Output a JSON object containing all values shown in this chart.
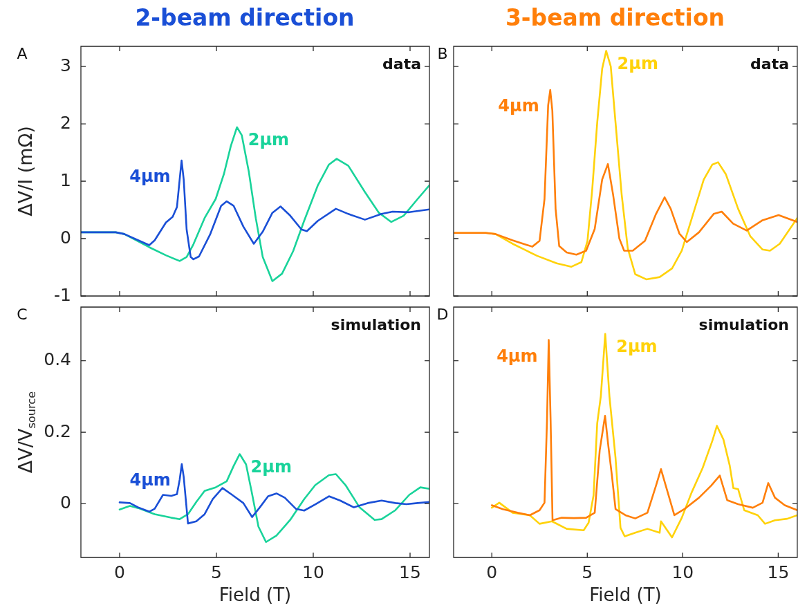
{
  "chart_data": [
    {
      "type": "line",
      "title": "2-beam direction",
      "ylabel": "ΔV/I (mΩ)",
      "annotations": [
        "A",
        "data"
      ],
      "xlim": [
        -2,
        16
      ],
      "xticks": [
        0,
        5,
        10,
        15
      ],
      "ylim": [
        -1,
        3.35
      ],
      "yticks": [
        -1,
        0,
        1,
        2,
        3
      ],
      "tick_labels": "y",
      "series": [
        {
          "name": "4μm",
          "color": "#1a4fd6",
          "x": [
            -2,
            -0.2,
            0.24,
            1.53,
            1.81,
            2.39,
            2.74,
            2.96,
            3.1,
            3.2,
            3.31,
            3.46,
            3.67,
            3.81,
            4.1,
            4.67,
            5.24,
            5.53,
            5.89,
            6.39,
            6.93,
            7.39,
            7.89,
            8.31,
            8.81,
            9.39,
            9.67,
            10.24,
            11.17,
            11.81,
            12.67,
            13.53,
            14.1,
            14.96,
            16
          ],
          "values": [
            0.11,
            0.11,
            0.08,
            -0.115,
            -0.03,
            0.28,
            0.38,
            0.55,
            1.03,
            1.36,
            1.03,
            0.16,
            -0.32,
            -0.36,
            -0.31,
            0.07,
            0.57,
            0.65,
            0.57,
            0.21,
            -0.09,
            0.12,
            0.45,
            0.56,
            0.4,
            0.16,
            0.13,
            0.31,
            0.52,
            0.43,
            0.33,
            0.43,
            0.47,
            0.46,
            0.51
          ]
        },
        {
          "name": "2μm",
          "color": "#19d39a",
          "x": [
            -2,
            -0.2,
            0.24,
            1.53,
            2.39,
            3.1,
            3.46,
            3.81,
            4.39,
            4.96,
            5.39,
            5.74,
            6.06,
            6.31,
            6.67,
            7.03,
            7.39,
            7.89,
            8.39,
            8.96,
            9.53,
            10.24,
            10.81,
            11.21,
            11.81,
            12.67,
            13.39,
            14.03,
            14.67,
            15.39,
            16
          ],
          "values": [
            0.11,
            0.11,
            0.08,
            -0.15,
            -0.29,
            -0.39,
            -0.32,
            -0.1,
            0.36,
            0.69,
            1.13,
            1.61,
            1.94,
            1.8,
            1.17,
            0.36,
            -0.32,
            -0.74,
            -0.61,
            -0.22,
            0.31,
            0.93,
            1.29,
            1.39,
            1.27,
            0.81,
            0.45,
            0.29,
            0.4,
            0.69,
            0.93
          ]
        }
      ]
    },
    {
      "type": "line",
      "title": "3-beam direction",
      "annotations": [
        "B",
        "data"
      ],
      "xlim": [
        -2,
        16
      ],
      "xticks": [
        0,
        5,
        10,
        15
      ],
      "ylim": [
        -1,
        3.35
      ],
      "yticks": [
        -1,
        0,
        1,
        2,
        3
      ],
      "tick_labels": false,
      "series": [
        {
          "name": "4μm",
          "color": "#ff7f0a",
          "x": [
            -2,
            -0.32,
            0.19,
            1.09,
            2.12,
            2.5,
            2.76,
            2.95,
            3.06,
            3.17,
            3.34,
            3.53,
            3.92,
            4.43,
            4.94,
            5.39,
            5.78,
            6.08,
            6.35,
            6.68,
            6.93,
            7.38,
            8.02,
            8.6,
            9.05,
            9.37,
            9.82,
            10.21,
            10.85,
            11.62,
            12.04,
            12.64,
            13.35,
            14.18,
            15.02,
            16
          ],
          "values": [
            0.1,
            0.1,
            0.08,
            -0.03,
            -0.14,
            -0.04,
            0.69,
            2.32,
            2.59,
            2.23,
            0.52,
            -0.13,
            -0.24,
            -0.28,
            -0.21,
            0.17,
            1.03,
            1.3,
            0.77,
            0,
            -0.21,
            -0.21,
            -0.04,
            0.43,
            0.72,
            0.52,
            0.09,
            -0.06,
            0.11,
            0.43,
            0.47,
            0.26,
            0.14,
            0.32,
            0.41,
            0.29
          ]
        },
        {
          "name": "2μm",
          "color": "#ffd20a",
          "x": [
            -2,
            -0.32,
            0.19,
            1.09,
            2.37,
            3.4,
            4.17,
            4.69,
            5.01,
            5.26,
            5.52,
            5.78,
            5.99,
            6.23,
            6.48,
            6.8,
            7.12,
            7.51,
            8.09,
            8.79,
            9.44,
            9.95,
            10.46,
            11.1,
            11.55,
            11.85,
            12.26,
            12.9,
            13.54,
            14.18,
            14.57,
            15.08,
            16
          ],
          "values": [
            0.1,
            0.1,
            0.08,
            -0.09,
            -0.3,
            -0.43,
            -0.49,
            -0.41,
            -0.04,
            0.86,
            2.02,
            2.96,
            3.27,
            3,
            2.02,
            0.77,
            -0.17,
            -0.62,
            -0.71,
            -0.67,
            -0.52,
            -0.21,
            0.34,
            1.03,
            1.29,
            1.33,
            1.12,
            0.52,
            0.04,
            -0.19,
            -0.21,
            -0.09,
            0.36
          ]
        }
      ]
    },
    {
      "type": "line",
      "xlabel": "Field (T)",
      "ylabel": "ΔV/V$_{source}$",
      "annotations": [
        "C",
        "simulation"
      ],
      "xlim": [
        -2,
        16
      ],
      "xticks": [
        0,
        5,
        10,
        15
      ],
      "ylim": [
        -0.15,
        0.55
      ],
      "yticks": [
        0,
        0.2,
        0.4
      ],
      "series": [
        {
          "name": "4μm",
          "color": "#1a4fd6",
          "x": [
            0,
            0.53,
            0.96,
            1.53,
            1.81,
            2.24,
            2.67,
            2.96,
            3.1,
            3.21,
            3.31,
            3.53,
            3.96,
            4.39,
            4.81,
            5.31,
            5.81,
            6.39,
            6.84,
            7.24,
            7.67,
            8.1,
            8.53,
            9.1,
            9.53,
            10.1,
            10.81,
            11.39,
            12.1,
            12.81,
            13.53,
            14.24,
            14.81,
            15.39,
            16
          ],
          "values": [
            0.004,
            0.002,
            -0.01,
            -0.022,
            -0.014,
            0.025,
            0.022,
            0.027,
            0.067,
            0.111,
            0.075,
            -0.055,
            -0.049,
            -0.029,
            0.013,
            0.044,
            0.025,
            0.002,
            -0.037,
            -0.01,
            0.021,
            0.029,
            0.017,
            -0.014,
            -0.019,
            -0.002,
            0.021,
            0.009,
            -0.01,
            0.002,
            0.009,
            0.002,
            -0.001,
            0.002,
            0.005
          ]
        },
        {
          "name": "2μm",
          "color": "#19d39a",
          "x": [
            0,
            0.53,
            0.96,
            1.81,
            2.67,
            3.1,
            3.53,
            3.96,
            4.39,
            4.96,
            5.53,
            5.89,
            6.2,
            6.53,
            6.81,
            7.17,
            7.56,
            8.1,
            8.81,
            9.53,
            10.1,
            10.81,
            11.17,
            11.67,
            12.39,
            13.17,
            13.53,
            14.24,
            14.96,
            15.53,
            16
          ],
          "values": [
            -0.016,
            -0.006,
            -0.012,
            -0.029,
            -0.039,
            -0.043,
            -0.029,
            0.005,
            0.036,
            0.046,
            0.063,
            0.106,
            0.139,
            0.11,
            0.036,
            -0.064,
            -0.107,
            -0.089,
            -0.045,
            0.013,
            0.052,
            0.08,
            0.083,
            0.052,
            -0.01,
            -0.045,
            -0.043,
            -0.018,
            0.025,
            0.046,
            0.042
          ]
        }
      ]
    },
    {
      "type": "line",
      "xlabel": "Field (T)",
      "annotations": [
        "D",
        "simulation"
      ],
      "xlim": [
        -2,
        16
      ],
      "xticks": [
        0,
        5,
        10,
        15
      ],
      "ylim": [
        -0.15,
        0.55
      ],
      "yticks": [
        0,
        0.2,
        0.4
      ],
      "tick_labels": "x",
      "series": [
        {
          "name": "4μm",
          "color": "#ff7f0a",
          "x": [
            0,
            0.58,
            1.35,
            1.99,
            2.5,
            2.76,
            2.89,
            2.98,
            3.08,
            3.18,
            3.66,
            4.3,
            4.94,
            5.39,
            5.65,
            5.93,
            6.1,
            6.29,
            6.48,
            7,
            7.51,
            8.15,
            8.6,
            8.86,
            9.11,
            9.56,
            10.08,
            10.85,
            11.49,
            11.94,
            12.33,
            12.9,
            13.67,
            14.18,
            14.48,
            14.83,
            15.34,
            16
          ],
          "values": [
            -0.004,
            -0.015,
            -0.025,
            -0.032,
            -0.018,
            0.003,
            0.232,
            0.458,
            0.232,
            -0.046,
            -0.039,
            -0.04,
            -0.039,
            -0.025,
            0.149,
            0.246,
            0.163,
            0.079,
            -0.015,
            -0.032,
            -0.041,
            -0.025,
            0.051,
            0.097,
            0.051,
            -0.032,
            -0.015,
            0.017,
            0.051,
            0.079,
            0.01,
            -0.001,
            -0.011,
            0.003,
            0.058,
            0.017,
            -0.004,
            -0.018
          ]
        },
        {
          "name": "2μm",
          "color": "#ffd20a",
          "x": [
            0,
            0.39,
            1.09,
            1.99,
            2.5,
            3.15,
            3.92,
            4.81,
            5.07,
            5.33,
            5.52,
            5.71,
            5.94,
            6.16,
            6.48,
            6.74,
            6.96,
            7.51,
            8.15,
            8.79,
            8.86,
            9.44,
            9.95,
            10.46,
            11.04,
            11.55,
            11.79,
            12.13,
            12.46,
            12.65,
            12.9,
            13.22,
            13.93,
            14.31,
            14.83,
            15.47,
            16
          ],
          "values": [
            -0.011,
            0.003,
            -0.025,
            -0.032,
            -0.056,
            -0.049,
            -0.07,
            -0.074,
            -0.053,
            0.024,
            0.225,
            0.301,
            0.475,
            0.301,
            0.128,
            -0.067,
            -0.091,
            -0.081,
            -0.07,
            -0.081,
            -0.049,
            -0.094,
            -0.039,
            0.031,
            0.1,
            0.176,
            0.218,
            0.18,
            0.107,
            0.044,
            0.041,
            -0.018,
            -0.032,
            -0.056,
            -0.046,
            -0.042,
            -0.032
          ]
        }
      ]
    }
  ]
}
